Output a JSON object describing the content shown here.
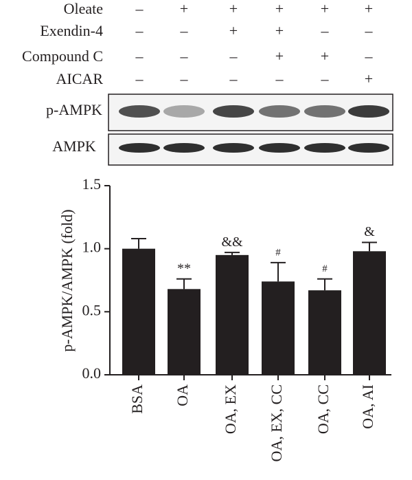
{
  "treatments": [
    {
      "label": "Oleate",
      "signs": [
        "–",
        "+",
        "+",
        "+",
        "+",
        "+"
      ]
    },
    {
      "label": "Exendin-4",
      "signs": [
        "–",
        "–",
        "+",
        "+",
        "–",
        "–"
      ]
    },
    {
      "label": "Compound C",
      "signs": [
        "–",
        "–",
        "–",
        "+",
        "+",
        "–"
      ]
    },
    {
      "label": "AICAR",
      "signs": [
        "–",
        "–",
        "–",
        "–",
        "–",
        "+"
      ]
    }
  ],
  "blots": [
    "p-AMPK",
    "AMPK"
  ],
  "chart_data": {
    "type": "bar",
    "y_label": "p-AMPK/AMPK (fold)",
    "categories": [
      "BSA",
      "OA",
      "OA, EX",
      "OA, EX, CC",
      "OA, CC",
      "OA, AI"
    ],
    "values": [
      1.0,
      0.68,
      0.95,
      0.74,
      0.67,
      0.98
    ],
    "errors": [
      0.08,
      0.08,
      0.02,
      0.15,
      0.09,
      0.07
    ],
    "annotations": [
      null,
      "**",
      "&&",
      "#",
      "#",
      "&"
    ],
    "color": "#231f20",
    "ylim": [
      0,
      1.5
    ],
    "yticks": [
      {
        "value": 0,
        "label": "0.0"
      },
      0.5,
      {
        "value": 1,
        "label": "1.0"
      },
      1.5
    ]
  }
}
